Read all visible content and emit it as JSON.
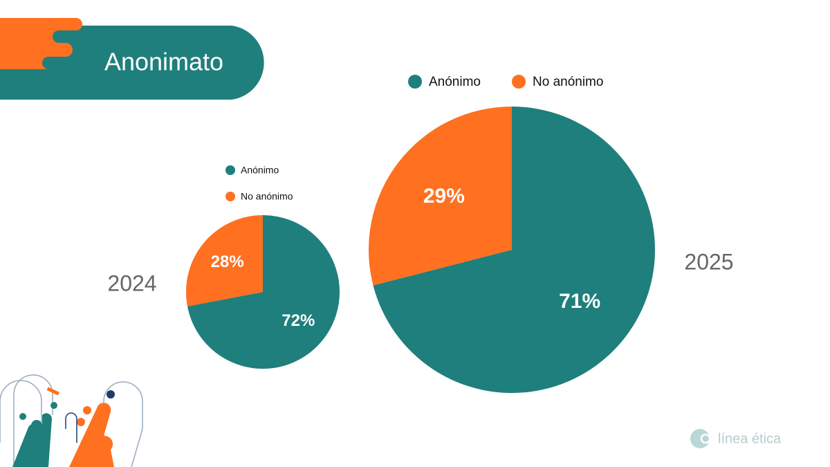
{
  "title": "Anonimato",
  "logo": "línea ética",
  "chart_data": [
    {
      "type": "pie",
      "title": "2024",
      "categories": [
        "Anónimo",
        "No anónimo"
      ],
      "values": [
        72,
        28
      ],
      "value_labels": [
        "72%",
        "28%"
      ],
      "colors": [
        "#1f7f7c",
        "#ff7020"
      ]
    },
    {
      "type": "pie",
      "title": "2025",
      "categories": [
        "Anónimo",
        "No anónimo"
      ],
      "values": [
        71,
        29
      ],
      "value_labels": [
        "71%",
        "29%"
      ],
      "colors": [
        "#1f7f7c",
        "#ff7020"
      ]
    }
  ]
}
